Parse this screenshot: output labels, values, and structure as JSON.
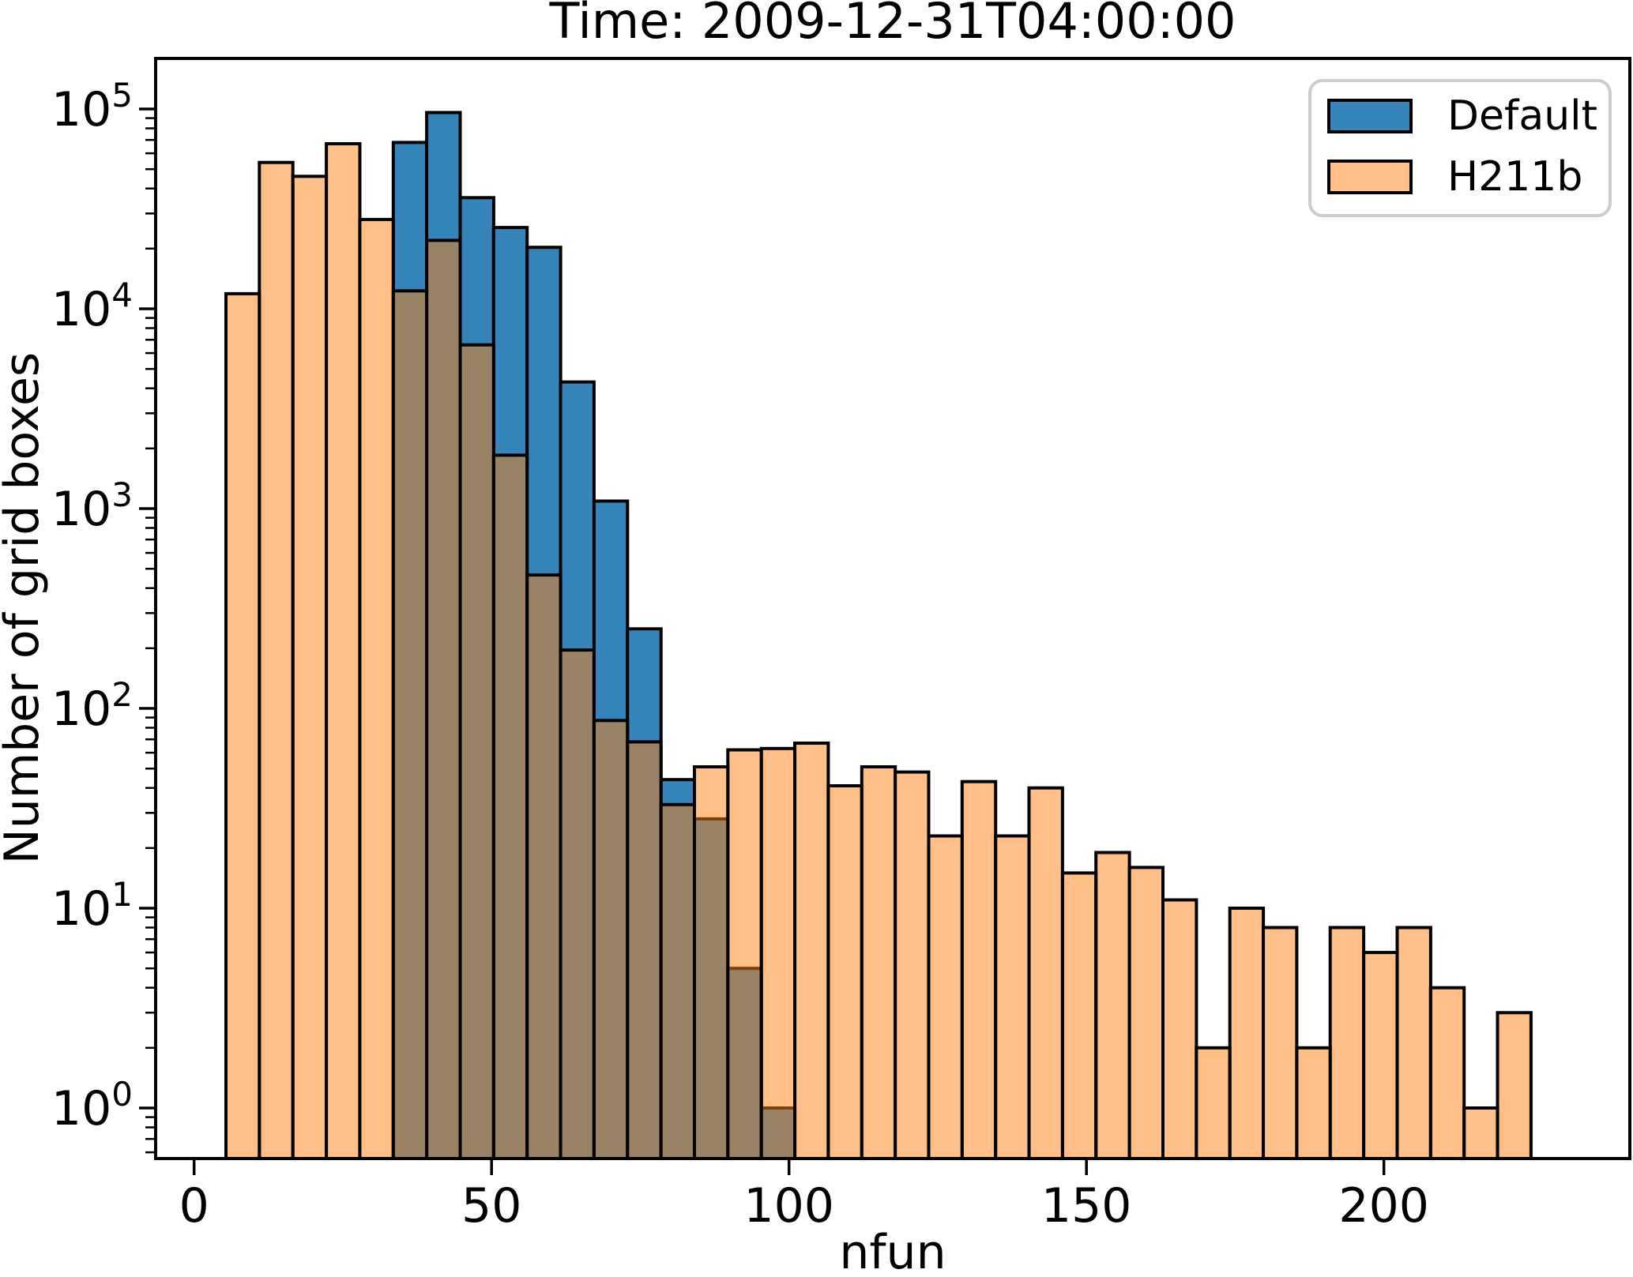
{
  "chart_data": {
    "type": "bar",
    "subtype": "overlaid-histogram",
    "title": "Time: 2009-12-31T04:00:00",
    "xlabel": "nfun",
    "ylabel": "Number of grid boxes",
    "yscale": "log",
    "grid": false,
    "legend_position": "upper right",
    "xlim": [
      -6.5,
      241
    ],
    "ylim": [
      0.56,
      179000
    ],
    "x_ticks": [
      0,
      50,
      100,
      150,
      200
    ],
    "y_tick_exponents": [
      0,
      1,
      2,
      3,
      4,
      5
    ],
    "bins": {
      "start": 5.35,
      "width": 5.625,
      "count": 39
    },
    "colors": {
      "default_fill": "#3585bb",
      "h211b_fill": "rgba(255,127,14,0.5)",
      "bar_edge": "#000000",
      "axes": "#000000",
      "legend_border": "#cccccc"
    },
    "series": [
      {
        "name": "Default",
        "color": "#3585bb",
        "values": [
          0,
          0,
          0,
          0,
          0,
          68000,
          96000,
          36000,
          25500,
          20300,
          4300,
          1090,
          250,
          44,
          28,
          5,
          1,
          0,
          0,
          0,
          0,
          0,
          0,
          0,
          0,
          0,
          0,
          0,
          0,
          0,
          0,
          0,
          0,
          0,
          0,
          0,
          0,
          0,
          0
        ]
      },
      {
        "name": "H211b",
        "color": "rgba(255,127,14,0.5)",
        "values": [
          11900,
          54000,
          46000,
          67000,
          28000,
          12300,
          22000,
          6600,
          1850,
          465,
          196,
          87,
          68,
          33,
          51,
          62,
          63,
          67,
          41,
          51,
          48,
          23,
          43,
          23,
          40,
          15,
          19,
          16,
          11,
          2,
          10,
          8,
          2,
          8,
          6,
          8,
          4,
          1,
          3
        ]
      }
    ]
  }
}
